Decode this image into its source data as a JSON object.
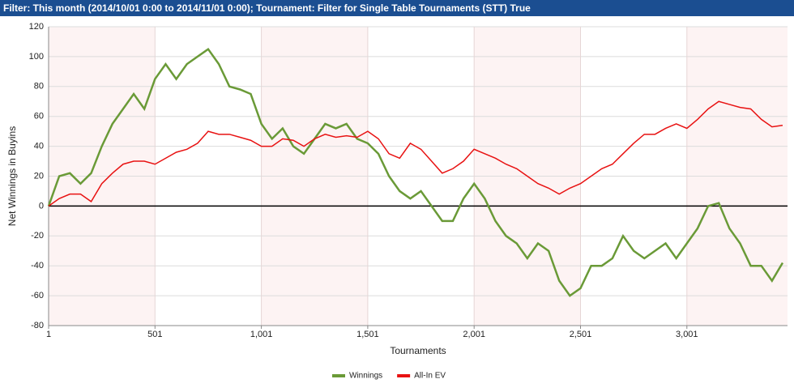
{
  "filter": "Filter: This month (2014/10/01 0:00 to 2014/11/01 0:00); Tournament: Filter for Single Table Tournaments (STT) True",
  "chart_data": {
    "type": "line",
    "x_label": "Tournaments",
    "y_label": "Net Winnings in Buyins",
    "x": [
      1,
      51,
      101,
      151,
      201,
      251,
      301,
      351,
      401,
      451,
      501,
      551,
      601,
      651,
      701,
      751,
      801,
      851,
      901,
      951,
      1001,
      1051,
      1101,
      1151,
      1201,
      1251,
      1301,
      1351,
      1401,
      1451,
      1501,
      1551,
      1601,
      1651,
      1701,
      1751,
      1801,
      1851,
      1901,
      1951,
      2001,
      2051,
      2101,
      2151,
      2201,
      2251,
      2301,
      2351,
      2401,
      2451,
      2501,
      2551,
      2601,
      2651,
      2701,
      2751,
      2801,
      2851,
      2901,
      2951,
      3001,
      3051,
      3101,
      3151,
      3201,
      3251,
      3301,
      3351,
      3401,
      3451
    ],
    "series": [
      {
        "name": "Winnings",
        "color": "#6a9a37",
        "values": [
          0,
          20,
          22,
          15,
          22,
          40,
          55,
          65,
          75,
          65,
          85,
          95,
          85,
          95,
          100,
          105,
          95,
          80,
          78,
          75,
          55,
          45,
          52,
          40,
          35,
          45,
          55,
          52,
          55,
          45,
          42,
          35,
          20,
          10,
          5,
          10,
          0,
          -10,
          -10,
          5,
          15,
          5,
          -10,
          -20,
          -25,
          -35,
          -25,
          -30,
          -50,
          -60,
          -55,
          -40,
          -40,
          -35,
          -20,
          -30,
          -35,
          -30,
          -25,
          -35,
          -25,
          -15,
          0,
          2,
          -15,
          -25,
          -40,
          -40,
          -50,
          -38
        ]
      },
      {
        "name": "All-In EV",
        "color": "#e81212",
        "values": [
          0,
          5,
          8,
          8,
          3,
          15,
          22,
          28,
          30,
          30,
          28,
          32,
          36,
          38,
          42,
          50,
          48,
          48,
          46,
          44,
          40,
          40,
          45,
          44,
          40,
          45,
          48,
          46,
          47,
          46,
          50,
          45,
          35,
          32,
          42,
          38,
          30,
          22,
          25,
          30,
          38,
          35,
          32,
          28,
          25,
          20,
          15,
          12,
          8,
          12,
          15,
          20,
          25,
          28,
          35,
          42,
          48,
          48,
          52,
          55,
          52,
          58,
          65,
          70,
          68,
          66,
          65,
          58,
          53,
          54
        ]
      }
    ],
    "xlim": [
      1,
      3474
    ],
    "ylim": [
      -80,
      120
    ],
    "xticks": [
      1,
      501,
      {
        "value": 1001,
        "label": "1,001"
      },
      {
        "value": 1501,
        "label": "1,501"
      },
      {
        "value": 2001,
        "label": "2,001"
      },
      {
        "value": 2501,
        "label": "2,501"
      },
      {
        "value": 3001,
        "label": "3,001"
      }
    ],
    "yticks": [
      -80,
      -60,
      -40,
      -20,
      0,
      20,
      40,
      60,
      80,
      100,
      120
    ],
    "grid": true,
    "legend": "bottom"
  }
}
